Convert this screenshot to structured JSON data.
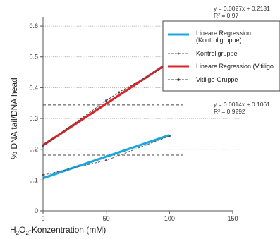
{
  "chart_data": {
    "type": "line",
    "xlabel_main": "H",
    "xlabel_sub1": "2",
    "xlabel_mid": "O",
    "xlabel_sub2": "2",
    "xlabel_tail": "-Konzentration (mM)",
    "ylabel": "% DNA tail/DNA head",
    "xlim": [
      0,
      150
    ],
    "ylim": [
      0,
      0.63
    ],
    "x_ticks": [
      "0",
      "50",
      "100",
      "150"
    ],
    "y_ticks": [
      "0",
      "0.1",
      "0.2",
      "0.3",
      "0.4",
      "0.5",
      "0.6"
    ],
    "grid": true,
    "legend_position": "top-right",
    "series": [
      {
        "name": "Lineare Regression (Kontrollgruppe)",
        "legend_line1": "Lineare Regression",
        "legend_line2": "(Kontrollgruppe)",
        "kind": "regression",
        "color": "#1aa7e0",
        "x": [
          0,
          100
        ],
        "y": [
          0.1061,
          0.2461
        ]
      },
      {
        "name": "Kontrollgruppe",
        "kind": "data",
        "color": "#555555",
        "x": [
          0,
          50,
          100
        ],
        "y": [
          0.116,
          0.164,
          0.243
        ]
      },
      {
        "name": "Lineare Regression (Vitiligo",
        "legend_line1": "Lineare Regression (Vitiligo",
        "kind": "regression",
        "color": "#d9252b",
        "x": [
          0,
          100
        ],
        "y": [
          0.2131,
          0.4831
        ]
      },
      {
        "name": "Vitiligo-Gruppe",
        "kind": "data",
        "color": "#444444",
        "x": [
          0,
          50,
          60,
          100
        ],
        "y": [
          0.212,
          0.358,
          0.385,
          0.477
        ]
      }
    ],
    "reference_lines_y": [
      0.344,
      0.181
    ],
    "annotations": [
      {
        "line1": "y = 0.0027x + 0.2131",
        "line2": "R² = 0.97"
      },
      {
        "line1": "y = 0.0014x + 0.1061",
        "line2": "R² = 0.9292"
      }
    ]
  }
}
